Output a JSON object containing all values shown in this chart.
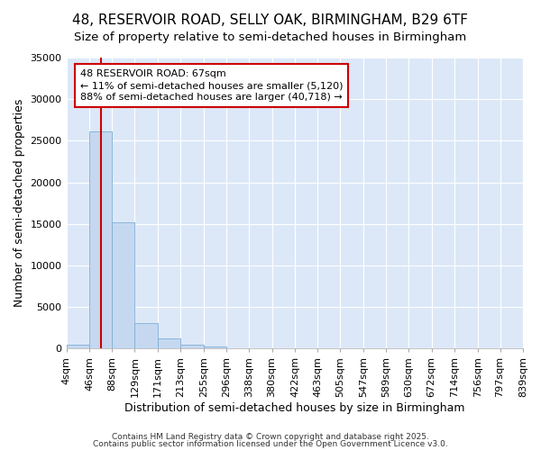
{
  "title": "48, RESERVOIR ROAD, SELLY OAK, BIRMINGHAM, B29 6TF",
  "subtitle": "Size of property relative to semi-detached houses in Birmingham",
  "xlabel": "Distribution of semi-detached houses by size in Birmingham",
  "ylabel": "Number of semi-detached properties",
  "bin_edges": [
    4,
    46,
    88,
    129,
    171,
    213,
    255,
    296,
    338,
    380,
    422,
    463,
    505,
    547,
    589,
    630,
    672,
    714,
    756,
    797,
    839
  ],
  "bar_heights": [
    500,
    26100,
    15200,
    3100,
    1200,
    500,
    300,
    50,
    20,
    10,
    5,
    3,
    2,
    1,
    1,
    0,
    0,
    0,
    0,
    0
  ],
  "bar_color": "#c5d8f0",
  "bar_edge_color": "#7fafd4",
  "property_size": 67,
  "vline_color": "#cc0000",
  "annotation_title": "48 RESERVOIR ROAD: 67sqm",
  "annotation_line2": "← 11% of semi-detached houses are smaller (5,120)",
  "annotation_line3": "88% of semi-detached houses are larger (40,718) →",
  "annotation_box_color": "#ffffff",
  "annotation_box_edge_color": "#cc0000",
  "ylim": [
    0,
    35000
  ],
  "yticks": [
    0,
    5000,
    10000,
    15000,
    20000,
    25000,
    30000,
    35000
  ],
  "plot_bg_color": "#dce8f8",
  "fig_bg_color": "#ffffff",
  "footer_line1": "Contains HM Land Registry data © Crown copyright and database right 2025.",
  "footer_line2": "Contains public sector information licensed under the Open Government Licence v3.0.",
  "title_fontsize": 11,
  "subtitle_fontsize": 9.5,
  "axis_label_fontsize": 9,
  "tick_fontsize": 8,
  "annotation_fontsize": 8
}
